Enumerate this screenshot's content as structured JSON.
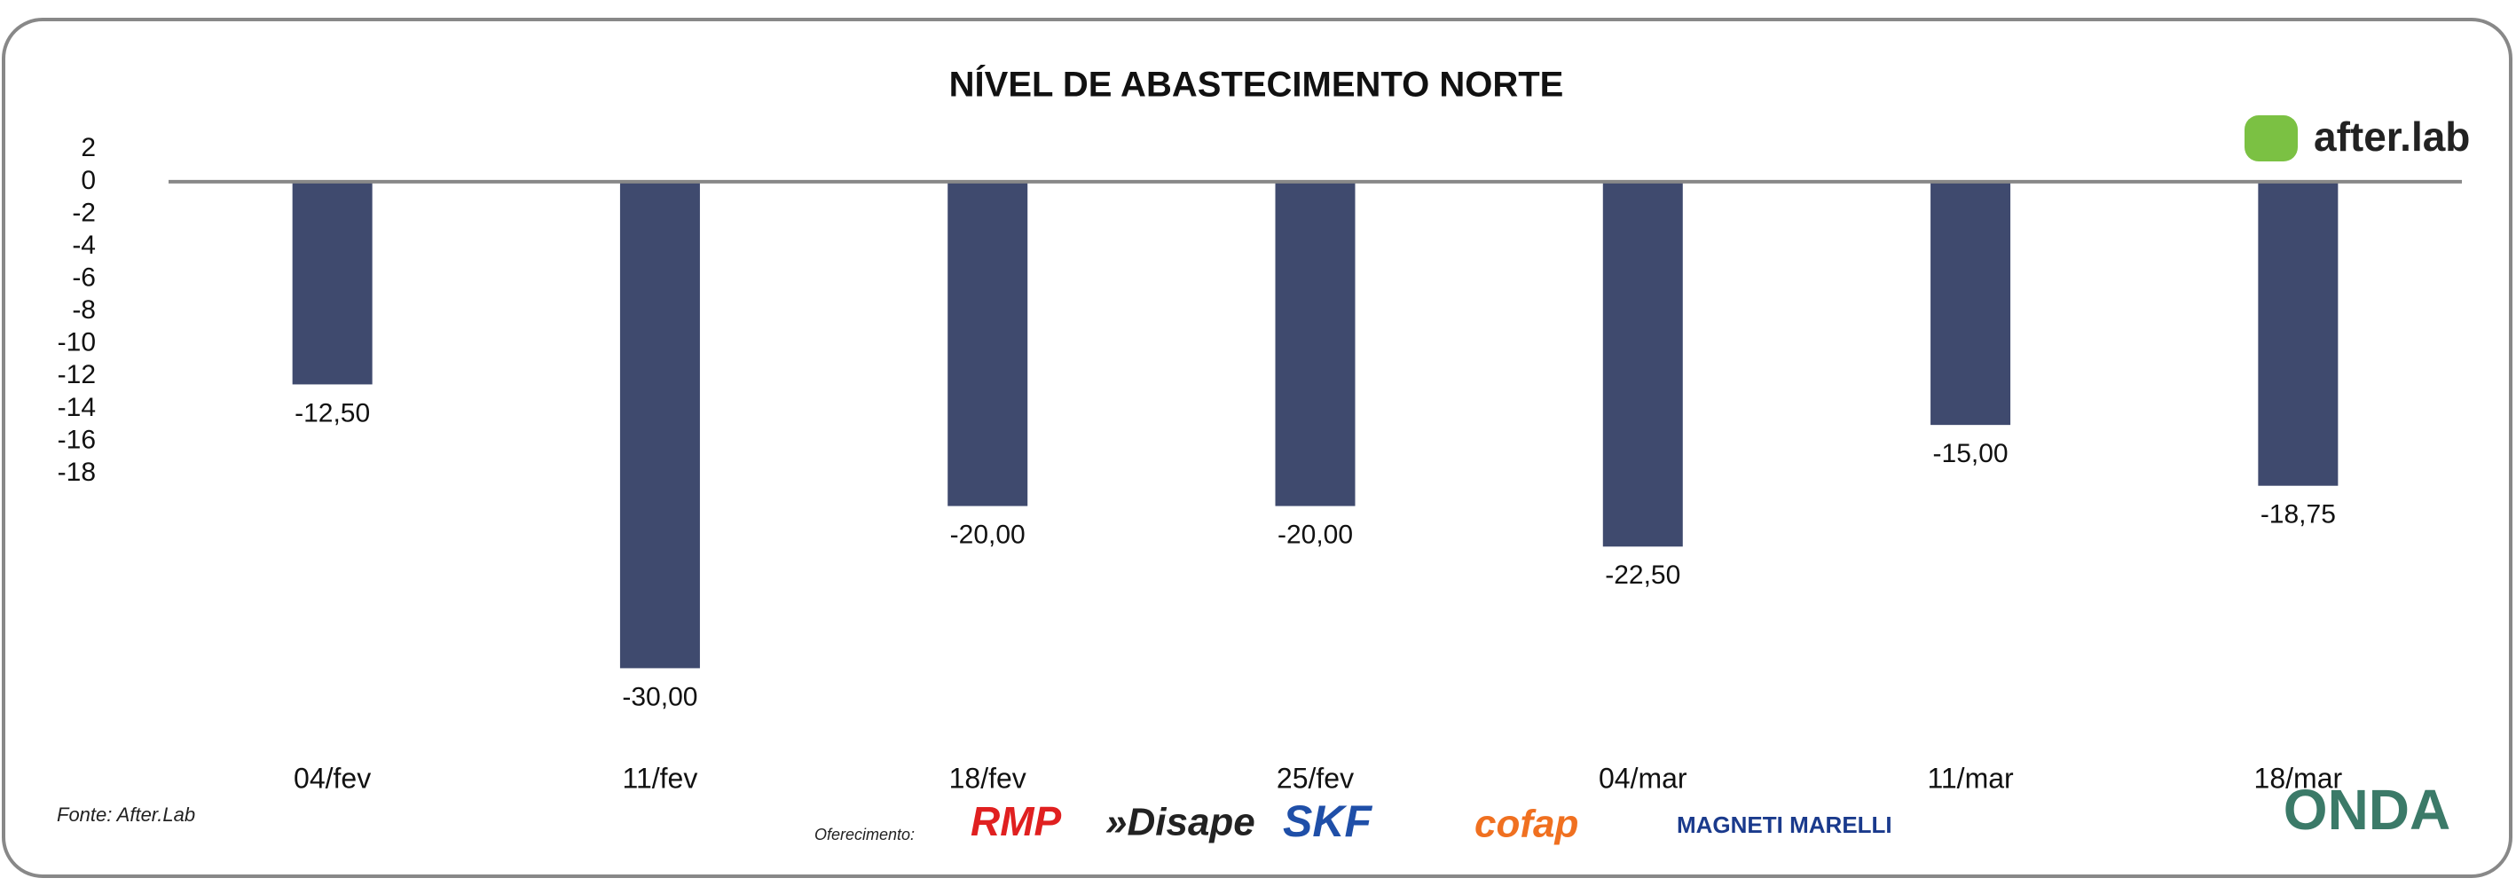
{
  "chart_data": {
    "type": "bar",
    "title": "NÍVEL DE ABASTECIMENTO NORTE",
    "categories": [
      "04/fev",
      "11/fev",
      "18/fev",
      "25/fev",
      "04/mar",
      "11/mar",
      "18/mar"
    ],
    "values": [
      -12.5,
      -30,
      -20,
      -20,
      -22.5,
      -15,
      -18.75
    ],
    "value_labels": [
      "-12,50",
      "-30,00",
      "-20,00",
      "-20,00",
      "-22,50",
      "-15,00",
      "-18,75"
    ],
    "color": "#3f4a6e",
    "ylim": [
      -32,
      3
    ],
    "yticks": [
      2,
      0,
      -2,
      -4,
      -6,
      -8,
      -10,
      -12,
      -14,
      -16,
      -18
    ],
    "grid": false
  },
  "footer": {
    "source": "Fonte: After.Lab",
    "sponsor_label": "Oferecimento:",
    "sponsors": [
      "RMP",
      "»Disape",
      "SKF",
      "cofap",
      "MAGNETI MARELLI"
    ],
    "brand": "after.lab",
    "badge": "ONDA"
  }
}
